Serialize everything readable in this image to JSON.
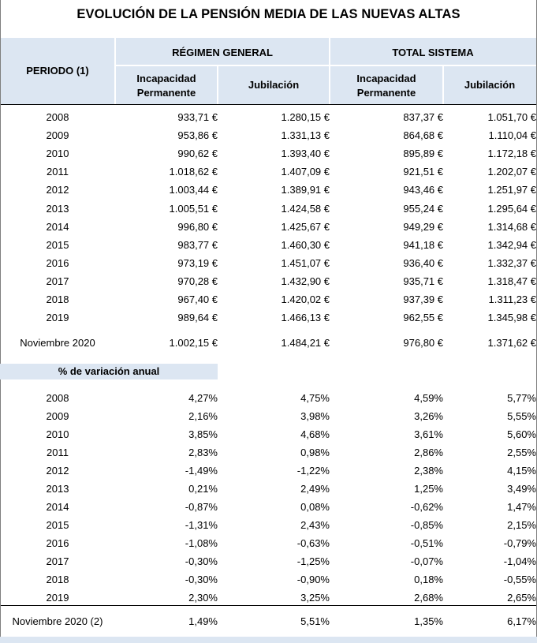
{
  "title": "EVOLUCIÓN DE LA PENSIÓN MEDIA DE LAS NUEVAS ALTAS",
  "header": {
    "periodo": "PERIODO (1)",
    "regimen_general": "RÉGIMEN GENERAL",
    "total_sistema": "TOTAL SISTEMA",
    "incapacidad_1": "Incapacidad",
    "incapacidad_2": "Permanente",
    "jubilacion": "Jubilación"
  },
  "pension_rows": [
    [
      "2008",
      "933,71 €",
      "1.280,15 €",
      "837,37 €",
      "1.051,70 €"
    ],
    [
      "2009",
      "953,86 €",
      "1.331,13 €",
      "864,68 €",
      "1.110,04 €"
    ],
    [
      "2010",
      "990,62 €",
      "1.393,40 €",
      "895,89 €",
      "1.172,18 €"
    ],
    [
      "2011",
      "1.018,62 €",
      "1.407,09 €",
      "921,51 €",
      "1.202,07 €"
    ],
    [
      "2012",
      "1.003,44 €",
      "1.389,91 €",
      "943,46 €",
      "1.251,97 €"
    ],
    [
      "2013",
      "1.005,51 €",
      "1.424,58 €",
      "955,24 €",
      "1.295,64 €"
    ],
    [
      "2014",
      "996,80 €",
      "1.425,67 €",
      "949,29 €",
      "1.314,68 €"
    ],
    [
      "2015",
      "983,77 €",
      "1.460,30 €",
      "941,18 €",
      "1.342,94 €"
    ],
    [
      "2016",
      "973,19 €",
      "1.451,07 €",
      "936,40 €",
      "1.332,37 €"
    ],
    [
      "2017",
      "970,28 €",
      "1.432,90 €",
      "935,71 €",
      "1.318,47 €"
    ],
    [
      "2018",
      "967,40 €",
      "1.420,02 €",
      "937,39 €",
      "1.311,23 €"
    ],
    [
      "2019",
      "989,64 €",
      "1.466,13 €",
      "962,55 €",
      "1.345,98 €"
    ]
  ],
  "pension_last": [
    "Noviembre 2020",
    "1.002,15 €",
    "1.484,21 €",
    "976,80 €",
    "1.371,62 €"
  ],
  "variation_header": "% de variación anual",
  "variation_rows": [
    [
      "2008",
      "4,27%",
      "4,75%",
      "4,59%",
      "5,77%"
    ],
    [
      "2009",
      "2,16%",
      "3,98%",
      "3,26%",
      "5,55%"
    ],
    [
      "2010",
      "3,85%",
      "4,68%",
      "3,61%",
      "5,60%"
    ],
    [
      "2011",
      "2,83%",
      "0,98%",
      "2,86%",
      "2,55%"
    ],
    [
      "2012",
      "-1,49%",
      "-1,22%",
      "2,38%",
      "4,15%"
    ],
    [
      "2013",
      "0,21%",
      "2,49%",
      "1,25%",
      "3,49%"
    ],
    [
      "2014",
      "-0,87%",
      "0,08%",
      "-0,62%",
      "1,47%"
    ],
    [
      "2015",
      "-1,31%",
      "2,43%",
      "-0,85%",
      "2,15%"
    ],
    [
      "2016",
      "-1,08%",
      "-0,63%",
      "-0,51%",
      "-0,79%"
    ],
    [
      "2017",
      "-0,30%",
      "-1,25%",
      "-0,07%",
      "-1,04%"
    ],
    [
      "2018",
      "-0,30%",
      "-0,90%",
      "0,18%",
      "-0,55%"
    ],
    [
      "2019",
      "2,30%",
      "3,25%",
      "2,68%",
      "2,65%"
    ]
  ],
  "variation_last": [
    "Noviembre 2020 (2)",
    "1,49%",
    "5,51%",
    "1,35%",
    "6,17%"
  ]
}
